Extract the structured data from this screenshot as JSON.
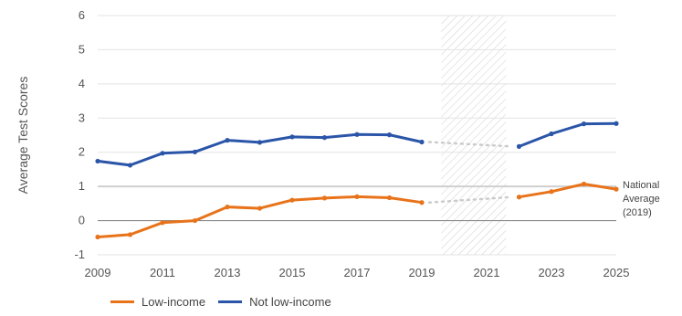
{
  "chart_data": {
    "type": "line",
    "ylabel": "Average Test Scores",
    "x_ticks": [
      "2009",
      "2011",
      "2013",
      "2015",
      "2017",
      "2019",
      "2021",
      "2023",
      "2025"
    ],
    "y_ticks": [
      "-1",
      "0",
      "1",
      "2",
      "3",
      "4",
      "5",
      "6"
    ],
    "xlim": [
      2009,
      2025
    ],
    "ylim": [
      -1,
      6
    ],
    "shaded_gap": [
      2019.6,
      2021.6
    ],
    "reference_line": {
      "y": 1,
      "label_lines": [
        "National",
        "Average",
        "(2019)"
      ]
    },
    "series": [
      {
        "name": "Low-income",
        "color": "#E8731A",
        "points": [
          [
            2009,
            -0.48
          ],
          [
            2010,
            -0.41
          ],
          [
            2011,
            -0.06
          ],
          [
            2012,
            0.0
          ],
          [
            2013,
            0.4
          ],
          [
            2014,
            0.36
          ],
          [
            2015,
            0.6
          ],
          [
            2016,
            0.66
          ],
          [
            2017,
            0.7
          ],
          [
            2018,
            0.67
          ],
          [
            2019,
            0.53
          ],
          [
            2022,
            0.69
          ],
          [
            2023,
            0.85
          ],
          [
            2024,
            1.07
          ],
          [
            2025,
            0.92
          ]
        ],
        "gap_from": 2019,
        "gap_to": 2022
      },
      {
        "name": "Not low-income",
        "color": "#2A55A8",
        "points": [
          [
            2009,
            1.74
          ],
          [
            2010,
            1.62
          ],
          [
            2011,
            1.97
          ],
          [
            2012,
            2.01
          ],
          [
            2013,
            2.35
          ],
          [
            2014,
            2.29
          ],
          [
            2015,
            2.45
          ],
          [
            2016,
            2.43
          ],
          [
            2017,
            2.52
          ],
          [
            2018,
            2.51
          ],
          [
            2019,
            2.3
          ],
          [
            2022,
            2.17
          ],
          [
            2023,
            2.54
          ],
          [
            2024,
            2.83
          ],
          [
            2025,
            2.84
          ]
        ],
        "gap_from": 2019,
        "gap_to": 2022
      }
    ],
    "legend": {
      "position": "bottom-left"
    }
  }
}
